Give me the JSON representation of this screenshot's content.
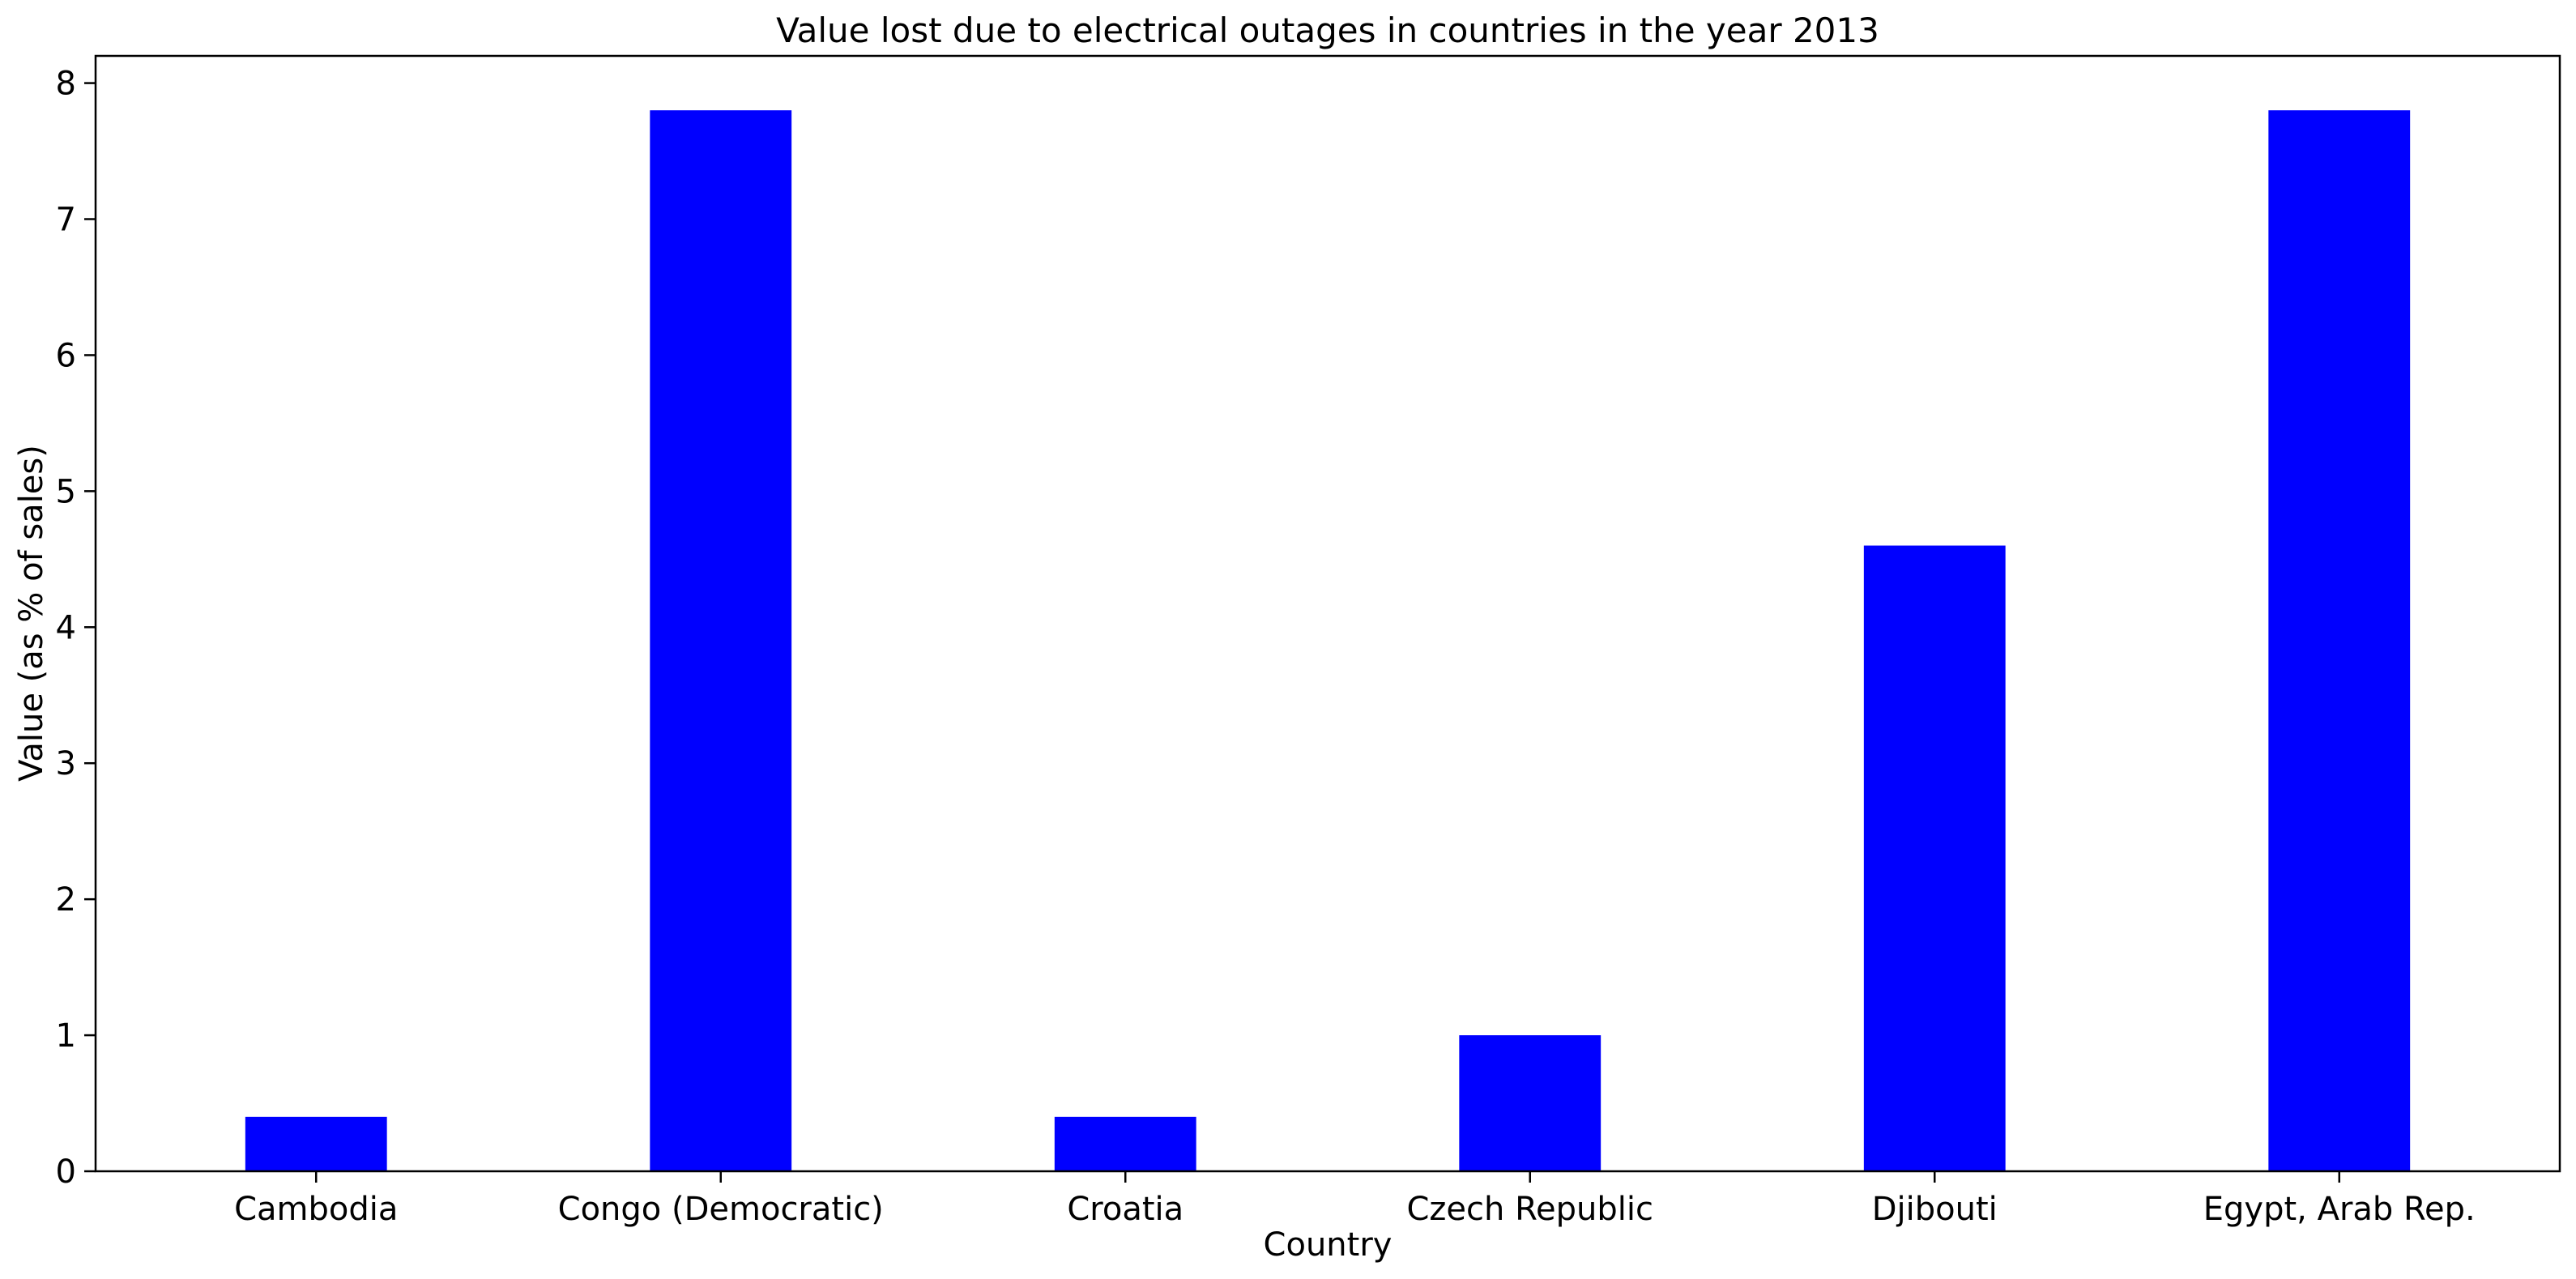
{
  "chart_data": {
    "type": "bar",
    "title": "Value lost due to electrical outages in countries in the year 2013",
    "xlabel": "Country",
    "ylabel": "Value (as % of sales)",
    "categories": [
      "Cambodia",
      "Congo (Democratic)",
      "Croatia",
      "Czech Republic",
      "Djibouti",
      "Egypt, Arab Rep."
    ],
    "values": [
      0.4,
      7.8,
      0.4,
      1.0,
      4.6,
      7.8
    ],
    "ylim": [
      0,
      8.2
    ],
    "yticks": [
      0,
      1,
      2,
      3,
      4,
      5,
      6,
      7,
      8
    ],
    "bar_color": "#0000ff",
    "grid": false,
    "legend": "none"
  }
}
